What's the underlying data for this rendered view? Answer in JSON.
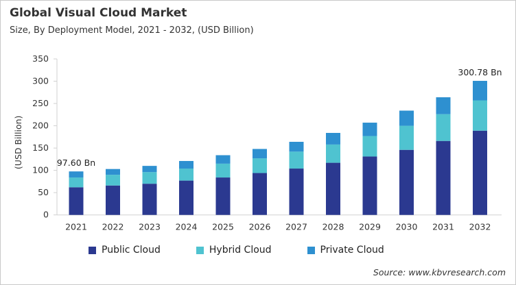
{
  "title": "Global Visual Cloud Market",
  "subtitle": "Size, By Deployment Model, 2021 - 2032, (USD Billion)",
  "source": "Source: www.kbvresearch.com",
  "chart_data": {
    "type": "bar",
    "stacked": true,
    "title": "Global Visual Cloud Market",
    "subtitle": "Size, By Deployment Model, 2021 - 2032, (USD Billion)",
    "ylabel": "(USD Billion)",
    "xlabel": "",
    "ylim": [
      0,
      350
    ],
    "yticks": [
      0,
      50,
      100,
      150,
      200,
      250,
      300,
      350
    ],
    "grid": false,
    "legend": "bottom",
    "categories": [
      "2021",
      "2022",
      "2023",
      "2024",
      "2025",
      "2026",
      "2027",
      "2028",
      "2029",
      "2030",
      "2031",
      "2032"
    ],
    "series": [
      {
        "name": "Public Cloud",
        "color": "#2b3990",
        "values": [
          62,
          66,
          70,
          77,
          84,
          94,
          104,
          117,
          131,
          146,
          166,
          189
        ]
      },
      {
        "name": "Hybrid Cloud",
        "color": "#4fc3d0",
        "values": [
          22,
          24,
          26,
          27,
          31,
          33,
          38,
          41,
          46,
          54,
          60,
          68
        ]
      },
      {
        "name": "Private Cloud",
        "color": "#2e90d0",
        "values": [
          13.6,
          13,
          14,
          17,
          19,
          21,
          22,
          26,
          30,
          34,
          38,
          43.78
        ]
      }
    ],
    "annotations": [
      {
        "category": "2021",
        "text": "97.60 Bn"
      },
      {
        "category": "2032",
        "text": "300.78 Bn"
      }
    ]
  }
}
